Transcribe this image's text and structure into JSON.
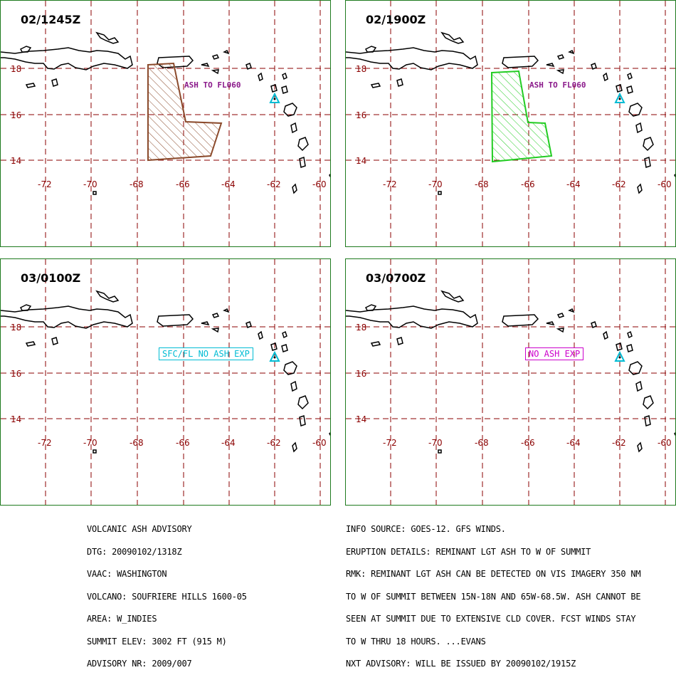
{
  "panels": [
    {
      "title": "02/1245Z",
      "label": "ASH TO FL060",
      "label_color": "#8b1a8b",
      "polygon_color": "#8b4a2b"
    },
    {
      "title": "02/1900Z",
      "label": "ASH TO FL060",
      "label_color": "#8b1a8b",
      "polygon_color": "#22cc22"
    },
    {
      "title": "03/0100Z",
      "label": "SFC/FL NO ASH EXP",
      "label_color": "#00bcd4"
    },
    {
      "title": "03/0700Z",
      "label": "NO ASH EXP",
      "label_color": "#cc00cc"
    }
  ],
  "latitudes": [
    "18",
    "16",
    "14"
  ],
  "longitudes": [
    "-72",
    "-70",
    "-68",
    "-66",
    "-64",
    "-62",
    "-60"
  ],
  "advisory_left": [
    "VOLCANIC ASH ADVISORY",
    "DTG: 20090102/1318Z",
    "VAAC: WASHINGTON",
    "VOLCANO: SOUFRIERE HILLS 1600-05",
    "AREA: W_INDIES",
    "SUMMIT ELEV: 3002 FT (915 M)",
    "ADVISORY NR: 2009/007"
  ],
  "advisory_right": [
    "INFO SOURCE: GOES-12. GFS WINDS.",
    "ERUPTION DETAILS: REMINANT LGT ASH TO W OF SUMMIT",
    "RMK: REMINANT LGT ASH CAN BE DETECTED ON VIS IMAGERY 350 NM",
    "TO W OF SUMMIT BETWEEN 15N-18N AND 65W-68.5W. ASH CANNOT BE",
    "SEEN AT SUMMIT DUE TO EXTENSIVE CLD COVER. FCST WINDS STAY",
    "TO W THRU 18 HOURS. ...EVANS",
    "NXT ADVISORY: WILL BE ISSUED BY 20090102/1915Z"
  ],
  "colors": {
    "grid": "#8b0000",
    "border": "#1e7a1e",
    "volcano": "#00bcd4"
  }
}
